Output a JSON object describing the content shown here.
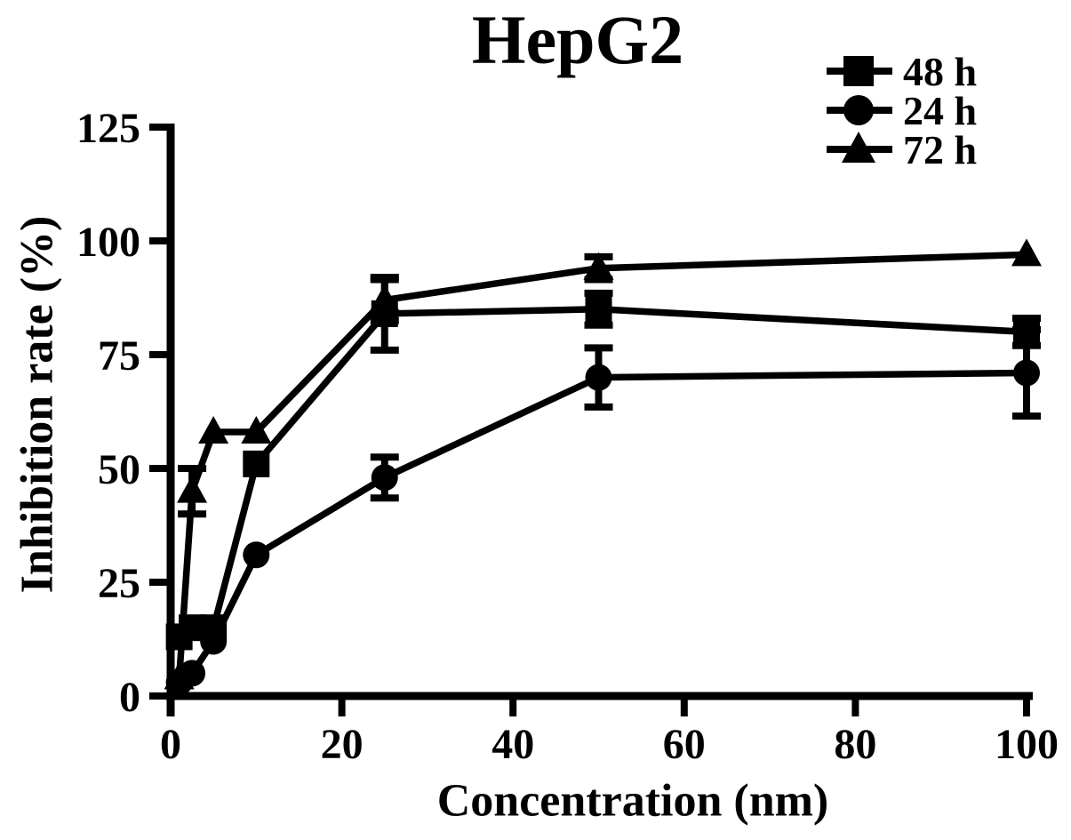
{
  "figure": {
    "title": "HepG2",
    "background_color": "#ffffff",
    "ink_color": "#000000"
  },
  "chart_data": {
    "type": "line",
    "title": "HepG2",
    "xlabel": "Concentration (nm)",
    "ylabel": "Inhibition rate (%)",
    "xlim": [
      0,
      100
    ],
    "ylim": [
      0,
      125
    ],
    "x_ticks": [
      0,
      20,
      40,
      60,
      80,
      100
    ],
    "y_ticks": [
      0,
      25,
      50,
      75,
      100,
      125
    ],
    "grid": false,
    "legend_position": "top-right",
    "error_bars": true,
    "x": [
      1,
      2.5,
      5,
      10,
      25,
      50,
      100
    ],
    "series": [
      {
        "name": "48 h",
        "marker": "square",
        "color": "#000000",
        "values": [
          13,
          15,
          15,
          51,
          84,
          85,
          80
        ],
        "errors": [
          0,
          0,
          0,
          0,
          8,
          3.5,
          3
        ]
      },
      {
        "name": "24 h",
        "marker": "circle",
        "color": "#000000",
        "values": [
          3,
          5,
          12,
          31,
          48,
          70,
          71
        ],
        "errors": [
          0,
          0,
          0,
          0,
          4.5,
          6.5,
          9.5
        ]
      },
      {
        "name": "72 h",
        "marker": "triangle",
        "color": "#000000",
        "values": [
          4,
          45,
          58,
          58,
          87,
          94,
          97
        ],
        "errors": [
          0,
          5,
          0,
          0,
          4.5,
          2.5,
          0
        ]
      }
    ]
  }
}
